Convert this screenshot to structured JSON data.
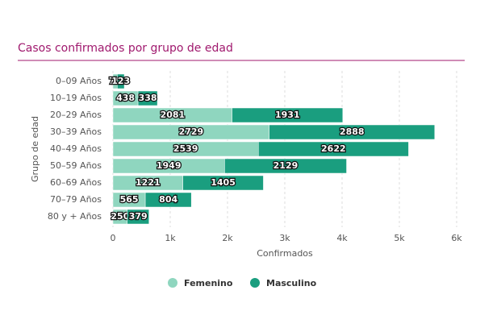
{
  "chart_data": {
    "type": "stacked-hbar",
    "title": "Casos confirmados por grupo de edad",
    "x_label": "Confirmados",
    "y_label": "Grupo de edad",
    "categories": [
      "0–09 Años",
      "10–19 Años",
      "20–29 Años",
      "30–39 Años",
      "40–49 Años",
      "50–59 Años",
      "60–69 Años",
      "70–79 Años",
      "80 y + Años"
    ],
    "series": [
      {
        "name": "Femenino",
        "color": "#8fd6bf",
        "values": [
          75,
          438,
          2081,
          2729,
          2539,
          1949,
          1221,
          565,
          250
        ]
      },
      {
        "name": "Masculino",
        "color": "#1a9e7f",
        "values": [
          123,
          338,
          1931,
          2888,
          2622,
          2129,
          1405,
          804,
          379
        ]
      }
    ],
    "xlim": [
      0,
      6000
    ],
    "xticks": [
      0,
      {
        "value": 1000,
        "label": "1k"
      },
      {
        "value": 2000,
        "label": "2k"
      },
      {
        "value": 3000,
        "label": "3k"
      },
      {
        "value": 4000,
        "label": "4k"
      },
      {
        "value": 5000,
        "label": "5k"
      },
      {
        "value": 6000,
        "label": "6k"
      }
    ],
    "grid": true,
    "legend": "bottom"
  }
}
